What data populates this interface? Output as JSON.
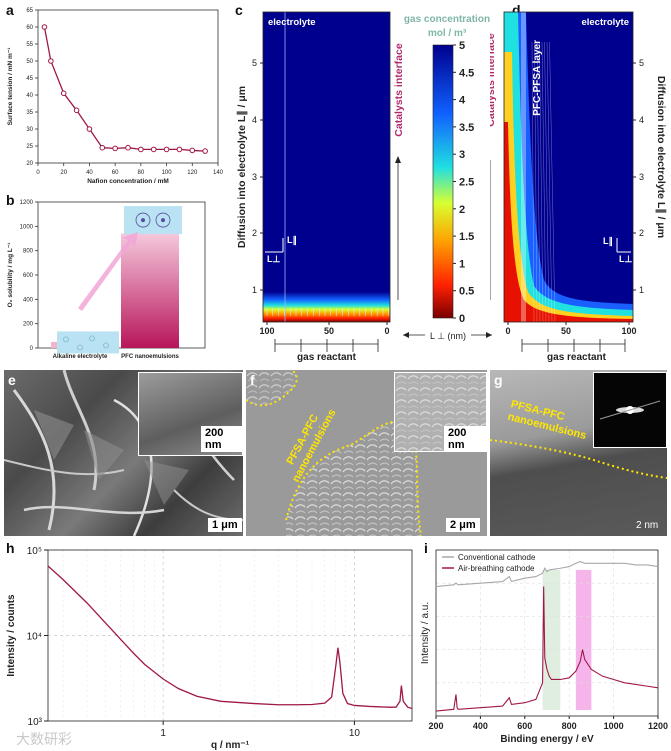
{
  "panels": {
    "a": {
      "letter": "a"
    },
    "b": {
      "letter": "b"
    },
    "c": {
      "letter": "c"
    },
    "d": {
      "letter": "d"
    },
    "e": {
      "letter": "e"
    },
    "f": {
      "letter": "f"
    },
    "g": {
      "letter": "g"
    },
    "h": {
      "letter": "h"
    },
    "i": {
      "letter": "i"
    }
  },
  "chart_data": [
    {
      "id": "a",
      "type": "line",
      "xlabel": "Nafion concentration / mM",
      "ylabel": "Surface tension / mN m⁻¹",
      "xlim": [
        0,
        140
      ],
      "ylim": [
        20,
        65
      ],
      "xticks": [
        "0",
        "20",
        "40",
        "60",
        "80",
        "100",
        "120",
        "140"
      ],
      "yticks": [
        "20",
        "25",
        "30",
        "35",
        "40",
        "45",
        "50",
        "55",
        "60",
        "65"
      ],
      "x": [
        5,
        10,
        20,
        30,
        40,
        50,
        60,
        70,
        80,
        90,
        100,
        110,
        120,
        130
      ],
      "y": [
        60,
        50,
        40.5,
        35.5,
        30,
        24.5,
        24.3,
        24.5,
        24,
        24,
        24,
        24,
        23.7,
        23.5
      ],
      "color": "#a01848"
    },
    {
      "id": "b",
      "type": "bar",
      "categories": [
        "Alkaline electrolyte",
        "PFC nanoemulsions"
      ],
      "values": [
        50,
        940
      ],
      "ylabel": "O₂ solubility / mg L⁻¹",
      "ylim": [
        0,
        1200
      ],
      "yticks": [
        "0",
        "200",
        "400",
        "600",
        "800",
        "1000",
        "1200"
      ]
    },
    {
      "id": "c",
      "type": "heatmap",
      "label_electrolyte": "electrolyte",
      "ylabel": "Diffusion into electrolyte L∥ / μm",
      "yticks": [
        "1",
        "2",
        "3",
        "4",
        "5"
      ],
      "xticks": [
        "100",
        "50",
        "0"
      ],
      "xlabel": "gas reactant",
      "interface_label": "Catalysts interface",
      "axis_para": "L∥",
      "axis_perp": "L⊥"
    },
    {
      "id": "colorbar",
      "type": "heatmap",
      "title": "gas concentration",
      "unit": "mol / m³",
      "ticks": [
        "5",
        "4.5",
        "4",
        "3.5",
        "3",
        "2.5",
        "2",
        "1.5",
        "1",
        "0.5",
        "0"
      ],
      "bottom_label": "L ⊥ (nm)"
    },
    {
      "id": "d",
      "type": "heatmap",
      "label_electrolyte": "electrolyte",
      "layer_label": "PFC-PFSA layer",
      "ylabel": "Diffusion into electrolyte L∥ / μm",
      "yticks": [
        "1",
        "2",
        "3",
        "4",
        "5"
      ],
      "xticks": [
        "0",
        "50",
        "100"
      ],
      "xlabel": "gas reactant",
      "interface_label": "Catalysts interface",
      "axis_para": "L∥",
      "axis_perp": "L⊥"
    },
    {
      "id": "h",
      "type": "line",
      "xlabel": "q / nm⁻¹",
      "ylabel": "Intensity / counts",
      "xscale": "log",
      "yscale": "log",
      "xlim": [
        0.25,
        20
      ],
      "ylim": [
        1000,
        100000
      ],
      "xticks": [
        "1",
        "10"
      ],
      "yticks": [
        "10³",
        "10⁴",
        "10⁵"
      ],
      "x": [
        0.25,
        0.3,
        0.4,
        0.5,
        0.6,
        0.7,
        0.8,
        1.0,
        1.2,
        1.5,
        2,
        3,
        4,
        5,
        6,
        7,
        7.6,
        8.0,
        8.2,
        8.4,
        8.7,
        9.2,
        10,
        12,
        15,
        16.5,
        17.3,
        17.6,
        18,
        19,
        20
      ],
      "y": [
        65000,
        45000,
        24000,
        14000,
        9000,
        6200,
        4600,
        3100,
        2400,
        1950,
        1700,
        1600,
        1550,
        1550,
        1560,
        1620,
        1900,
        4500,
        7200,
        4800,
        2100,
        1600,
        1520,
        1480,
        1450,
        1450,
        1700,
        2600,
        1700,
        1450,
        1400
      ],
      "color": "#a01848"
    },
    {
      "id": "i",
      "type": "line",
      "xlabel": "Binding energy / eV",
      "ylabel": "Intensity / a.u.",
      "xlim": [
        200,
        1200
      ],
      "xticks": [
        "200",
        "400",
        "600",
        "800",
        "1000",
        "1200"
      ],
      "series": [
        {
          "name": "Conventional cathode",
          "color": "#a8a8a8",
          "x": [
            200,
            280,
            290,
            300,
            400,
            500,
            530,
            540,
            600,
            650,
            680,
            690,
            700,
            710,
            760,
            800,
            830,
            850,
            870,
            900,
            950,
            1000,
            1050,
            1100,
            1150,
            1200
          ],
          "y": [
            0.78,
            0.79,
            0.8,
            0.79,
            0.8,
            0.81,
            0.84,
            0.81,
            0.83,
            0.84,
            0.86,
            0.89,
            0.87,
            0.88,
            0.89,
            0.9,
            0.92,
            0.93,
            0.92,
            0.92,
            0.92,
            0.92,
            0.92,
            0.91,
            0.91,
            0.9
          ]
        },
        {
          "name": "Air-breathing cathode",
          "color": "#a01848",
          "x": [
            200,
            280,
            290,
            295,
            300,
            400,
            500,
            530,
            540,
            600,
            650,
            680,
            685,
            690,
            700,
            710,
            720,
            760,
            800,
            830,
            850,
            860,
            870,
            900,
            950,
            1000,
            1050,
            1100,
            1150,
            1200
          ],
          "y": [
            0.03,
            0.04,
            0.13,
            0.05,
            0.04,
            0.05,
            0.06,
            0.11,
            0.07,
            0.08,
            0.1,
            0.2,
            0.78,
            0.35,
            0.28,
            0.24,
            0.22,
            0.22,
            0.23,
            0.27,
            0.33,
            0.4,
            0.34,
            0.28,
            0.24,
            0.22,
            0.2,
            0.19,
            0.18,
            0.17
          ]
        }
      ],
      "highlights": [
        {
          "from": 680,
          "to": 760,
          "color": "#d9ebd9"
        },
        {
          "from": 830,
          "to": 900,
          "color": "#f3a8e6"
        }
      ]
    }
  ],
  "micro": {
    "e": {
      "scale1": "200 nm",
      "scale2": "1 μm"
    },
    "f": {
      "annotation": "PFSA-PFC nanoemulsions",
      "scale1": "200 nm",
      "scale2": "2 μm"
    },
    "g": {
      "annotation": "PFSA-PFC nanoemulsions",
      "scale": "2 nm"
    }
  },
  "watermark": "大数研彩",
  "colors": {
    "magenta": "#a01848",
    "yellow": "#ffe600",
    "teal": "#7fb6a8",
    "interface": "#b02a6a"
  }
}
